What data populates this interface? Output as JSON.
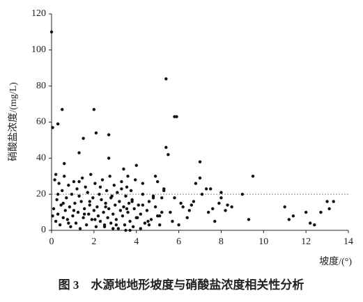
{
  "chart_data": {
    "type": "scatter",
    "y_label": "硝酸盐浓度/(mg/L)",
    "x_label": "坡度/(°)",
    "caption": "图 3　水源地地形坡度与硝酸盐浓度相关性分析",
    "xlim": [
      0,
      14
    ],
    "ylim": [
      0,
      120
    ],
    "xticks": [
      0,
      2,
      4,
      6,
      8,
      10,
      12,
      14
    ],
    "yticks": [
      0,
      20,
      40,
      60,
      80,
      100,
      120
    ],
    "reference_line": 20,
    "series": [
      {
        "color": "#111111",
        "x": [
          0.1,
          0.15,
          0.2,
          0.25,
          0.3,
          0.35,
          0.4,
          0.45,
          0.5,
          0.55,
          0.6,
          0.65,
          0.7,
          0.75,
          0.8,
          0.85,
          0.9,
          0.95,
          1.0,
          1.05,
          1.1,
          1.15,
          1.2,
          1.25,
          1.3,
          1.35,
          1.4,
          1.45,
          1.5,
          1.55,
          1.6,
          1.65,
          1.7,
          1.75,
          1.8,
          1.85,
          1.9,
          1.95,
          2.0,
          2.05,
          2.1,
          2.15,
          2.2,
          2.25,
          2.3,
          2.35,
          2.4,
          2.45,
          2.5,
          2.55,
          2.6,
          2.65,
          2.7,
          2.75,
          2.8,
          2.85,
          2.9,
          2.95,
          3.0,
          3.05,
          3.1,
          3.15,
          3.2,
          3.25,
          3.3,
          3.35,
          3.4,
          3.45,
          3.5,
          3.55,
          3.6,
          3.65,
          3.7,
          3.75,
          3.8,
          3.85,
          3.9,
          3.95,
          4.0,
          4.1,
          4.2,
          4.3,
          4.4,
          4.5,
          4.6,
          4.7,
          4.8,
          4.9,
          5.0,
          5.1,
          5.2,
          5.3,
          0.05,
          0.3,
          0.55,
          0.8,
          1.05,
          1.3,
          1.55,
          1.8,
          2.05,
          2.3,
          2.55,
          2.8,
          3.05,
          3.3,
          3.55,
          3.8,
          4.05,
          4.3,
          4.55,
          4.8,
          0,
          0.05,
          0.3,
          0.5,
          2,
          2.1,
          1.5,
          1.3,
          0.2,
          0.6,
          2.7,
          2.7,
          5.4,
          5.4,
          5.5,
          5.8,
          5.9,
          7,
          7,
          9.5,
          9,
          7.3,
          7.5,
          8,
          8,
          8.5,
          8.2,
          9.3,
          11,
          11.2,
          11.4,
          12,
          12.2,
          12.4,
          12.7,
          13,
          13.1,
          13.3,
          4,
          3.4,
          3.6,
          4.3,
          4.9,
          5.3,
          6.1,
          6.6,
          6.8,
          7.4,
          7.7,
          7.9,
          6.5,
          6,
          5.7,
          5.1,
          4.6,
          4.2,
          3.5,
          3.7,
          2.9,
          2.5,
          5.2,
          5.6,
          6.2,
          6.4,
          6.7,
          7.1,
          7.6,
          8.3,
          5.0,
          5.8
        ],
        "values": [
          12,
          28,
          5,
          17,
          9,
          26,
          3,
          14,
          22,
          7,
          30,
          11,
          18,
          6,
          25,
          13,
          2,
          20,
          8,
          27,
          15,
          4,
          23,
          10,
          19,
          1,
          16,
          29,
          7,
          12,
          24,
          3,
          21,
          9,
          14,
          31,
          6,
          18,
          11,
          26,
          2,
          13,
          8,
          20,
          5,
          17,
          28,
          10,
          3,
          15,
          22,
          7,
          12,
          30,
          4,
          19,
          9,
          25,
          14,
          6,
          21,
          1,
          16,
          11,
          27,
          8,
          13,
          3,
          19,
          24,
          10,
          15,
          5,
          22,
          17,
          2,
          12,
          28,
          7,
          14,
          9,
          20,
          4,
          11,
          16,
          6,
          18,
          13,
          8,
          3,
          10,
          22,
          8,
          20,
          15,
          4,
          11,
          27,
          9,
          16,
          6,
          24,
          13,
          18,
          3,
          23,
          12,
          16,
          7,
          14,
          5,
          19,
          110,
          57,
          59,
          67,
          67,
          54,
          51,
          43,
          31,
          37,
          53,
          40,
          84,
          46,
          42,
          63,
          63,
          38,
          29,
          30,
          20,
          23,
          23,
          21,
          18,
          13,
          11,
          6,
          13,
          6,
          8,
          10,
          4,
          3,
          10,
          16,
          12,
          16,
          36,
          34,
          30,
          26,
          30,
          23,
          15,
          14,
          26,
          10,
          5,
          15,
          11,
          3,
          5,
          8,
          3,
          1,
          0,
          0,
          1,
          2,
          18,
          10,
          13,
          7,
          16,
          20,
          12,
          14,
          27,
          18
        ]
      }
    ]
  }
}
